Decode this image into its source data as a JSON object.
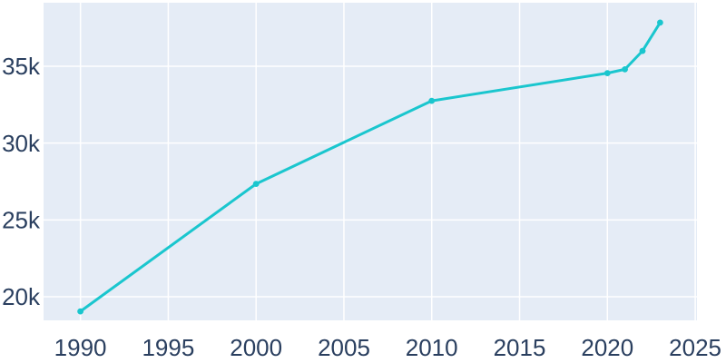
{
  "figure": {
    "background_color": "#ffffff"
  },
  "chart_data": {
    "type": "line",
    "title": "",
    "x": [
      1990,
      2000,
      2010,
      2020,
      2021,
      2022,
      2023
    ],
    "values": [
      19050,
      27350,
      32750,
      34550,
      34800,
      36000,
      37840
    ],
    "line_color": "#1ac6ce",
    "marker_color": "#1ac6ce",
    "line_width": 3,
    "marker_radius": 3.4,
    "plot_background_color": "#e5ecf6",
    "grid_color": "#ffffff",
    "tick_label_color": "#2a3f5f",
    "grid": true,
    "legend": "none",
    "x_axis": {
      "ticks": [
        1990,
        1995,
        2000,
        2005,
        2010,
        2015,
        2020,
        2025
      ],
      "tick_labels": [
        "1990",
        "1995",
        "2000",
        "2005",
        "2010",
        "2015",
        "2020",
        "2025"
      ],
      "range": [
        1987.9,
        2025.1
      ]
    },
    "y_axis": {
      "ticks": [
        20000,
        25000,
        30000,
        35000
      ],
      "tick_labels": [
        "20k",
        "25k",
        "30k",
        "35k"
      ],
      "range": [
        18465,
        39135
      ]
    }
  }
}
